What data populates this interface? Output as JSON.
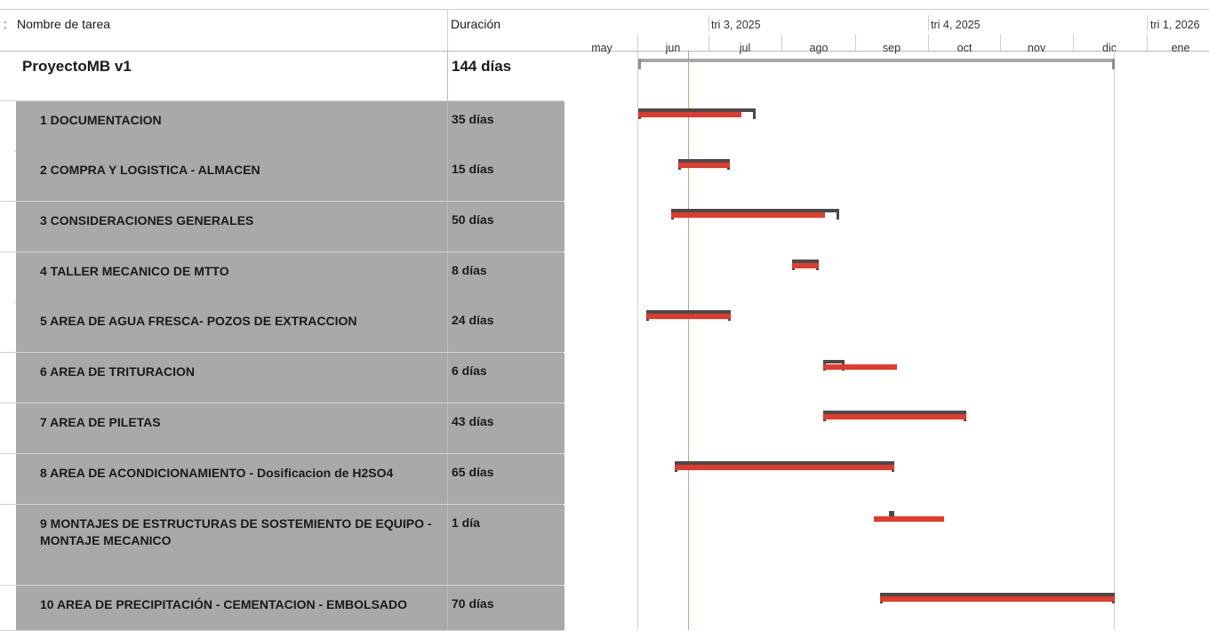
{
  "grid": {
    "column_cut_label": ":",
    "name_header": "Nombre de tarea",
    "duration_header": "Duración"
  },
  "timescale": {
    "quarters": [
      "tri 3, 2025",
      "tri 4, 2025",
      "tri 1, 2026"
    ],
    "months": [
      "may",
      "jun",
      "jul",
      "ago",
      "sep",
      "oct",
      "nov",
      "dic",
      "ene"
    ]
  },
  "project": {
    "name": "ProyectoMB v1",
    "duration": "144 días"
  },
  "tasks": [
    {
      "name": "1 DOCUMENTACION",
      "duration": "35 días"
    },
    {
      "name": "2 COMPRA Y LOGISTICA - ALMACEN",
      "duration": "15 días"
    },
    {
      "name": "3 CONSIDERACIONES GENERALES",
      "duration": "50 días"
    },
    {
      "name": "4 TALLER MECANICO DE MTTO",
      "duration": "8 días"
    },
    {
      "name": "5 AREA DE AGUA FRESCA- POZOS DE EXTRACCION",
      "duration": "24 días"
    },
    {
      "name": "6 AREA DE TRITURACION",
      "duration": "6 días"
    },
    {
      "name": "7 AREA DE PILETAS",
      "duration": "43 días"
    },
    {
      "name": "8 AREA DE ACONDICIONAMIENTO - Dosificacion de H2SO4",
      "duration": "65 días"
    },
    {
      "name": "9 MONTAJES DE ESTRUCTURAS DE SOSTEMIENTO DE EQUIPO - MONTAJE MECANICO",
      "duration": "1 día"
    },
    {
      "name": "10 AREA DE PRECIPITACIÓN - CEMENTACION - EMBOLSADO",
      "duration": "70 días"
    }
  ],
  "colors": {
    "summary_bar": "#4a4a4a",
    "progress_bar": "#e23a2c",
    "status_line": "#8cc079",
    "row_shade": "#a9a9a9"
  }
}
